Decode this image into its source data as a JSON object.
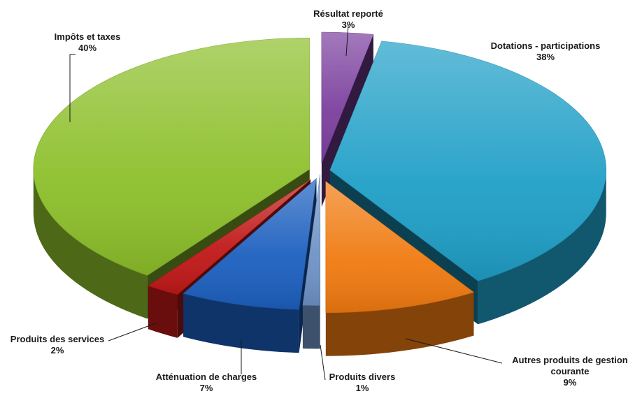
{
  "chart_data": {
    "type": "pie",
    "style": "3d-exploded",
    "title": "",
    "slices": [
      {
        "label": "Résultat reporté",
        "value": 3,
        "value_label": "3%",
        "color": "#7b3f9e"
      },
      {
        "label": "Dotations - participations",
        "value": 38,
        "value_label": "38%",
        "color": "#1f9fc7"
      },
      {
        "label": "Autres produits de gestion courante",
        "label_lines": [
          "Autres produits de gestion",
          "courante"
        ],
        "value": 9,
        "value_label": "9%",
        "color": "#f07a10"
      },
      {
        "label": "Produits divers",
        "value": 1,
        "value_label": "1%",
        "color": "#6f93c6"
      },
      {
        "label": "Atténuation de charges",
        "value": 7,
        "value_label": "7%",
        "color": "#1c5fbf"
      },
      {
        "label": "Produits des services",
        "value": 2,
        "value_label": "2%",
        "color": "#c01818"
      },
      {
        "label": "Impôts et taxes",
        "value": 40,
        "value_label": "40%",
        "color": "#8cbf2a"
      }
    ]
  }
}
